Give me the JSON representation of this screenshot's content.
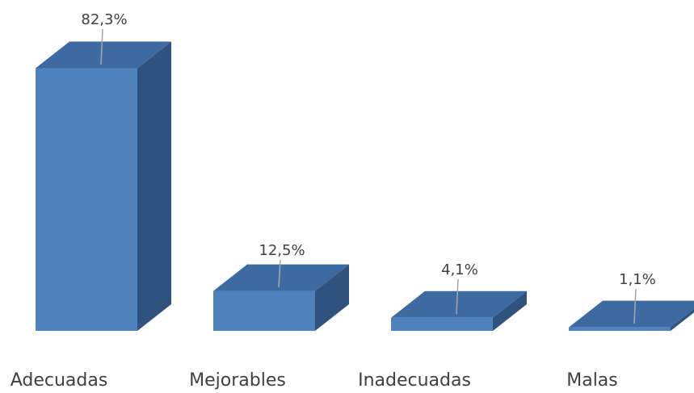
{
  "chart_data": {
    "type": "bar",
    "style": "3d-column",
    "categories": [
      "Adecuadas",
      "Mejorables",
      "Inadecuadas",
      "Malas"
    ],
    "values": [
      82.3,
      12.5,
      4.1,
      1.1
    ],
    "data_labels": [
      "82,3%",
      "12,5%",
      "4,1%",
      "1,1%"
    ],
    "unit": "%",
    "ylim": [
      0,
      100
    ],
    "grid": false,
    "legend": "none",
    "colors": {
      "front": "#4F81BD",
      "top": "#3E6AA2",
      "side": "#30527F",
      "leader_line": "#A6A6A6",
      "text": "#404040"
    }
  }
}
